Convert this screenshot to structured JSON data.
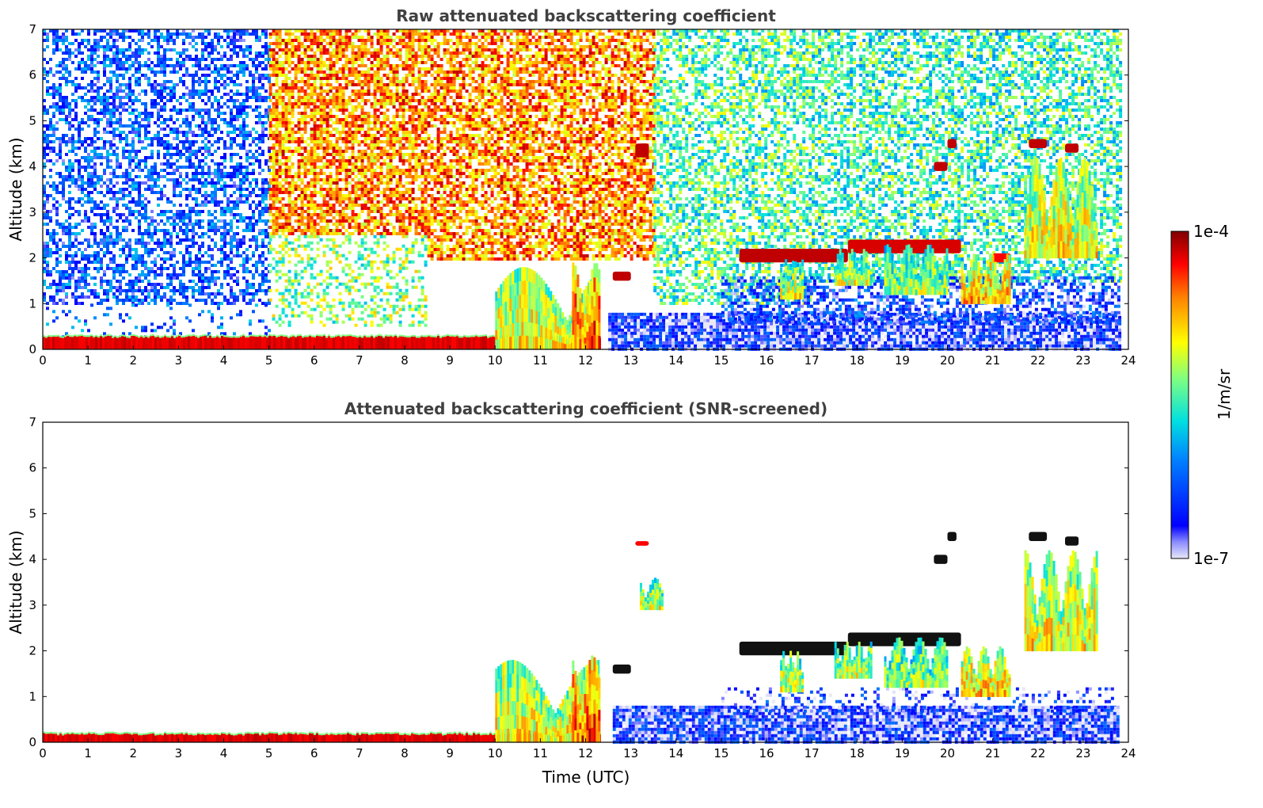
{
  "chart_data": [
    {
      "type": "heatmap",
      "title": "Raw attenuated backscattering coefficient",
      "xlabel": "",
      "ylabel": "Altitude (km)",
      "xlim": [
        0,
        24
      ],
      "ylim": [
        0,
        7
      ],
      "xticks": [
        "0",
        "1",
        "2",
        "3",
        "4",
        "5",
        "6",
        "7",
        "8",
        "9",
        "10",
        "11",
        "12",
        "13",
        "14",
        "15",
        "16",
        "17",
        "18",
        "19",
        "20",
        "21",
        "22",
        "23",
        "24"
      ],
      "yticks": [
        "0",
        "1",
        "2",
        "3",
        "4",
        "5",
        "6",
        "7"
      ],
      "features": [
        {
          "kind": "noise",
          "t": [
            0,
            5.0
          ],
          "z": [
            1.0,
            7.0
          ],
          "level": 0.22,
          "density": 0.55
        },
        {
          "kind": "noise",
          "t": [
            0,
            5.0
          ],
          "z": [
            0.2,
            1.0
          ],
          "level": 0.25,
          "density": 0.12
        },
        {
          "kind": "noise",
          "t": [
            5.0,
            8.5
          ],
          "z": [
            2.5,
            7.0
          ],
          "level": 0.78,
          "density": 0.75
        },
        {
          "kind": "noise",
          "t": [
            5.0,
            8.5
          ],
          "z": [
            0.5,
            2.5
          ],
          "level": 0.55,
          "density": 0.35
        },
        {
          "kind": "noise",
          "t": [
            8.5,
            13.5
          ],
          "z": [
            2.0,
            7.0
          ],
          "level": 0.78,
          "density": 0.7
        },
        {
          "kind": "noise",
          "t": [
            13.5,
            17.0
          ],
          "z": [
            1.0,
            7.0
          ],
          "level": 0.5,
          "density": 0.55
        },
        {
          "kind": "noise",
          "t": [
            17.0,
            23.8
          ],
          "z": [
            1.5,
            7.0
          ],
          "level": 0.48,
          "density": 0.55
        },
        {
          "kind": "noise",
          "t": [
            12.5,
            23.8
          ],
          "z": [
            0.0,
            0.8
          ],
          "level": 0.1,
          "density": 0.95
        },
        {
          "kind": "noise",
          "t": [
            15.0,
            23.8
          ],
          "z": [
            0.6,
            1.6
          ],
          "level": 0.18,
          "density": 0.5
        },
        {
          "kind": "layer",
          "t": [
            0,
            12.3
          ],
          "z": [
            0.0,
            0.3
          ],
          "level": 0.95
        },
        {
          "kind": "plume",
          "t": [
            10.0,
            12.3
          ],
          "z": [
            0.0,
            1.8
          ],
          "level": 0.55
        },
        {
          "kind": "plume",
          "t": [
            11.7,
            12.3
          ],
          "z": [
            0.0,
            1.9
          ],
          "level": 0.7
        },
        {
          "kind": "cloud",
          "t": [
            15.4,
            17.8
          ],
          "z": [
            1.9,
            2.2
          ],
          "level": 0.95
        },
        {
          "kind": "cloud",
          "t": [
            17.8,
            20.3
          ],
          "z": [
            2.1,
            2.4
          ],
          "level": 0.93
        },
        {
          "kind": "cloud",
          "t": [
            21.0,
            21.4
          ],
          "z": [
            1.9,
            2.1
          ],
          "level": 0.9
        },
        {
          "kind": "virga",
          "t": [
            16.3,
            16.8
          ],
          "z": [
            1.1,
            2.0
          ],
          "level": 0.5
        },
        {
          "kind": "virga",
          "t": [
            17.5,
            18.3
          ],
          "z": [
            1.4,
            2.2
          ],
          "level": 0.48
        },
        {
          "kind": "virga",
          "t": [
            18.6,
            20.0
          ],
          "z": [
            1.2,
            2.3
          ],
          "level": 0.45
        },
        {
          "kind": "virga",
          "t": [
            20.3,
            21.4
          ],
          "z": [
            1.0,
            2.1
          ],
          "level": 0.6
        },
        {
          "kind": "virga",
          "t": [
            21.7,
            23.3
          ],
          "z": [
            2.0,
            4.2
          ],
          "level": 0.55
        },
        {
          "kind": "cloud",
          "t": [
            13.1,
            13.4
          ],
          "z": [
            4.2,
            4.5
          ],
          "level": 0.95
        },
        {
          "kind": "cloud",
          "t": [
            12.6,
            13.0
          ],
          "z": [
            1.5,
            1.7
          ],
          "level": 0.95
        },
        {
          "kind": "cloud",
          "t": [
            20.0,
            20.2
          ],
          "z": [
            4.4,
            4.6
          ],
          "level": 0.95
        },
        {
          "kind": "cloud",
          "t": [
            19.7,
            20.0
          ],
          "z": [
            3.9,
            4.1
          ],
          "level": 0.95
        },
        {
          "kind": "cloud",
          "t": [
            21.8,
            22.2
          ],
          "z": [
            4.4,
            4.6
          ],
          "level": 0.95
        },
        {
          "kind": "cloud",
          "t": [
            22.6,
            22.9
          ],
          "z": [
            4.3,
            4.5
          ],
          "level": 0.95
        }
      ]
    },
    {
      "type": "heatmap",
      "title": "Attenuated backscattering coefficient (SNR-screened)",
      "xlabel": "Time (UTC)",
      "ylabel": "Altitude (km)",
      "xlim": [
        0,
        24
      ],
      "ylim": [
        0,
        7
      ],
      "xticks": [
        "0",
        "1",
        "2",
        "3",
        "4",
        "5",
        "6",
        "7",
        "8",
        "9",
        "10",
        "11",
        "12",
        "13",
        "14",
        "15",
        "16",
        "17",
        "18",
        "19",
        "20",
        "21",
        "22",
        "23",
        "24"
      ],
      "yticks": [
        "0",
        "1",
        "2",
        "3",
        "4",
        "5",
        "6",
        "7"
      ],
      "features": [
        {
          "kind": "layer",
          "t": [
            0,
            12.3
          ],
          "z": [
            0.0,
            0.2
          ],
          "level": 0.95
        },
        {
          "kind": "plume",
          "t": [
            10.0,
            12.3
          ],
          "z": [
            0.0,
            1.8
          ],
          "level": 0.55
        },
        {
          "kind": "plume",
          "t": [
            11.7,
            12.3
          ],
          "z": [
            0.0,
            1.9
          ],
          "level": 0.7
        },
        {
          "kind": "noise",
          "t": [
            12.6,
            23.8
          ],
          "z": [
            0.0,
            0.8
          ],
          "level": 0.1,
          "density": 0.97
        },
        {
          "kind": "noise",
          "t": [
            15.0,
            23.8
          ],
          "z": [
            0.7,
            1.2
          ],
          "level": 0.12,
          "density": 0.25
        },
        {
          "kind": "cloud",
          "t": [
            15.4,
            17.8
          ],
          "z": [
            1.9,
            2.2
          ],
          "level": 1.0
        },
        {
          "kind": "cloud",
          "t": [
            17.8,
            20.3
          ],
          "z": [
            2.1,
            2.4
          ],
          "level": 1.0
        },
        {
          "kind": "virga",
          "t": [
            16.3,
            16.8
          ],
          "z": [
            1.1,
            2.0
          ],
          "level": 0.5
        },
        {
          "kind": "virga",
          "t": [
            17.5,
            18.3
          ],
          "z": [
            1.4,
            2.2
          ],
          "level": 0.48
        },
        {
          "kind": "virga",
          "t": [
            18.6,
            20.0
          ],
          "z": [
            1.2,
            2.3
          ],
          "level": 0.45
        },
        {
          "kind": "virga",
          "t": [
            20.3,
            21.4
          ],
          "z": [
            1.0,
            2.1
          ],
          "level": 0.6
        },
        {
          "kind": "virga",
          "t": [
            21.7,
            23.3
          ],
          "z": [
            2.0,
            4.2
          ],
          "level": 0.55
        },
        {
          "kind": "cloud",
          "t": [
            13.1,
            13.4
          ],
          "z": [
            4.3,
            4.4
          ],
          "level": 0.9
        },
        {
          "kind": "cloud",
          "t": [
            12.6,
            13.0
          ],
          "z": [
            1.5,
            1.7
          ],
          "level": 1.0
        },
        {
          "kind": "cloud",
          "t": [
            20.0,
            20.2
          ],
          "z": [
            4.4,
            4.6
          ],
          "level": 1.0
        },
        {
          "kind": "cloud",
          "t": [
            19.7,
            20.0
          ],
          "z": [
            3.9,
            4.1
          ],
          "level": 1.0
        },
        {
          "kind": "cloud",
          "t": [
            21.8,
            22.2
          ],
          "z": [
            4.4,
            4.6
          ],
          "level": 1.0
        },
        {
          "kind": "cloud",
          "t": [
            22.6,
            22.9
          ],
          "z": [
            4.3,
            4.5
          ],
          "level": 1.0
        },
        {
          "kind": "plume",
          "t": [
            13.2,
            13.7
          ],
          "z": [
            2.9,
            3.6
          ],
          "level": 0.5
        }
      ]
    }
  ],
  "colorbar": {
    "label": "1/m/sr",
    "max_label": "1e-4",
    "min_label": "1e-7",
    "colormap": "jet",
    "scale": "log"
  }
}
